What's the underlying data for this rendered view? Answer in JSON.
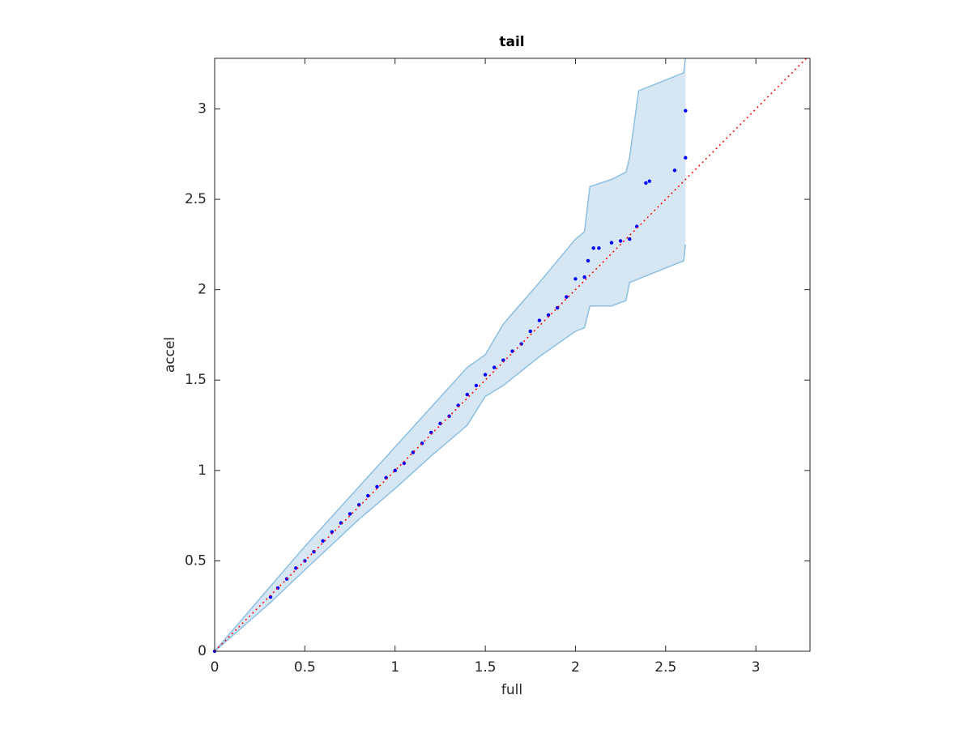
{
  "chart_data": {
    "type": "scatter",
    "title": "tail",
    "x_label": "full",
    "y_label": "accel",
    "xlim": [
      0,
      3.3
    ],
    "ylim": [
      0,
      3.28
    ],
    "xticks": [
      0,
      0.5,
      1,
      1.5,
      2,
      2.5,
      3
    ],
    "yticks": [
      0,
      0.5,
      1,
      1.5,
      2,
      2.5,
      3
    ],
    "band": {
      "fill_color": "#d6e6f3",
      "edge_color": "#8dbfe0",
      "x": [
        0,
        0.31,
        0.5,
        0.8,
        1.0,
        1.2,
        1.4,
        1.5,
        1.6,
        1.8,
        1.9,
        2.0,
        2.05,
        2.08,
        2.2,
        2.28,
        2.3,
        2.35,
        2.4,
        2.6,
        2.61
      ],
      "upper": [
        0,
        0.36,
        0.58,
        0.91,
        1.13,
        1.35,
        1.57,
        1.64,
        1.81,
        2.04,
        2.16,
        2.28,
        2.32,
        2.57,
        2.61,
        2.65,
        2.73,
        3.1,
        3.12,
        3.2,
        3.28
      ],
      "lower": [
        0,
        0.27,
        0.45,
        0.73,
        0.9,
        1.08,
        1.25,
        1.41,
        1.47,
        1.63,
        1.7,
        1.77,
        1.79,
        1.91,
        1.91,
        1.94,
        2.04,
        2.06,
        2.08,
        2.16,
        2.25
      ]
    },
    "reference": {
      "color": "#ff0000",
      "x": [
        0,
        3.28
      ],
      "values": [
        0,
        3.28
      ]
    },
    "series": [
      {
        "color": "#0000ff",
        "x": [
          0,
          0.31,
          0.35,
          0.4,
          0.45,
          0.5,
          0.55,
          0.6,
          0.65,
          0.7,
          0.75,
          0.8,
          0.85,
          0.9,
          0.95,
          1.0,
          1.05,
          1.1,
          1.15,
          1.2,
          1.25,
          1.3,
          1.35,
          1.4,
          1.45,
          1.5,
          1.55,
          1.6,
          1.65,
          1.7,
          1.75,
          1.8,
          1.85,
          1.9,
          1.95,
          2.0,
          2.05,
          2.07,
          2.1,
          2.13,
          2.2,
          2.25,
          2.3,
          2.34,
          2.39,
          2.41,
          2.55,
          2.61,
          2.61
        ],
        "values": [
          0,
          0.3,
          0.35,
          0.4,
          0.46,
          0.5,
          0.55,
          0.61,
          0.66,
          0.71,
          0.76,
          0.81,
          0.86,
          0.91,
          0.96,
          1.0,
          1.04,
          1.1,
          1.15,
          1.21,
          1.26,
          1.3,
          1.36,
          1.42,
          1.47,
          1.53,
          1.57,
          1.61,
          1.66,
          1.7,
          1.77,
          1.83,
          1.86,
          1.9,
          1.96,
          2.06,
          2.07,
          2.16,
          2.23,
          2.23,
          2.26,
          2.27,
          2.28,
          2.35,
          2.59,
          2.6,
          2.66,
          2.73,
          2.99
        ]
      }
    ]
  }
}
